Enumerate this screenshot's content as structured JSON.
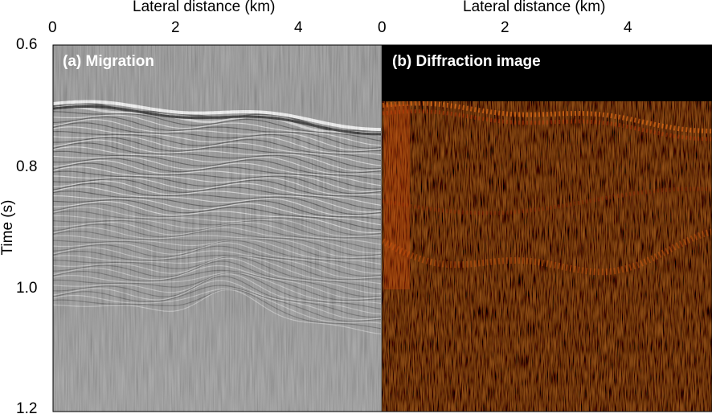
{
  "figure": {
    "y_axis_label": "Time (s)",
    "y_ticks": [
      "0.6",
      "0.8",
      "1.0",
      "1.2"
    ],
    "panels": [
      {
        "id": "a",
        "label": "(a) Migration",
        "x_axis_label": "Lateral distance (km)",
        "x_ticks": [
          "0",
          "2",
          "4"
        ],
        "colormap": "gray",
        "colors": {
          "background": "#8a8a8a",
          "reflector": "#ffffff",
          "trough": "#1a1a1a"
        }
      },
      {
        "id": "b",
        "label": "(b) Diffraction image",
        "x_axis_label": "Lateral distance (km)",
        "x_ticks": [
          "0",
          "2",
          "4"
        ],
        "colormap": "black-red-yellow",
        "colors": {
          "background": "#000000",
          "low": "#3a0a00",
          "mid": "#c8400a",
          "high": "#ffc040"
        }
      }
    ],
    "x_range_km": [
      0,
      5.4
    ],
    "time_range_s": [
      0.6,
      1.2
    ]
  }
}
